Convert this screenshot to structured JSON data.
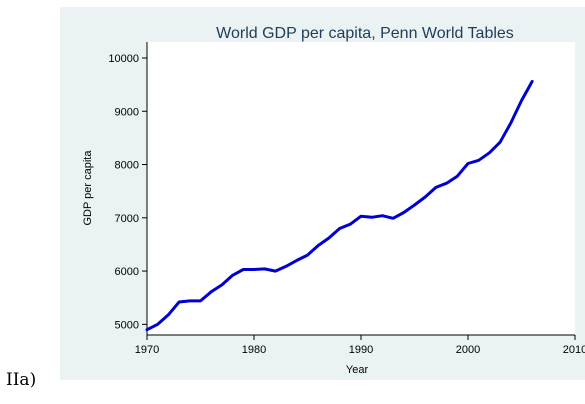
{
  "caption_prefix": "IIa)",
  "chart_data": {
    "type": "line",
    "title": "World GDP per capita, Penn World Tables",
    "xlabel": "Year",
    "ylabel": "GDP per capita",
    "xlim": [
      1970,
      2010
    ],
    "ylim": [
      4800,
      10300
    ],
    "xticks": [
      1970,
      1980,
      1990,
      2000,
      2010
    ],
    "yticks": [
      5000,
      6000,
      7000,
      8000,
      9000,
      10000
    ],
    "grid": false,
    "legend": "none",
    "colors": {
      "line": "#0000d0",
      "plot_bg": "#ffffff",
      "outer_bg": "#eaf2f3",
      "title": "#1f3c59"
    },
    "series": [
      {
        "x": [
          1970,
          1971,
          1972,
          1973,
          1974,
          1975,
          1976,
          1977,
          1978,
          1979,
          1980,
          1981,
          1982,
          1983,
          1984,
          1985,
          1986,
          1987,
          1988,
          1989,
          1990,
          1991,
          1992,
          1993,
          1994,
          1995,
          1996,
          1997,
          1998,
          1999,
          2000,
          2001,
          2002,
          2003,
          2004,
          2005,
          2006
        ],
        "values": [
          4900,
          5000,
          5180,
          5420,
          5440,
          5440,
          5610,
          5740,
          5920,
          6030,
          6030,
          6040,
          6000,
          6090,
          6200,
          6300,
          6480,
          6620,
          6800,
          6880,
          7030,
          7010,
          7040,
          6990,
          7100,
          7240,
          7390,
          7570,
          7650,
          7780,
          8020,
          8080,
          8220,
          8420,
          8780,
          9200,
          9560
        ]
      }
    ]
  }
}
